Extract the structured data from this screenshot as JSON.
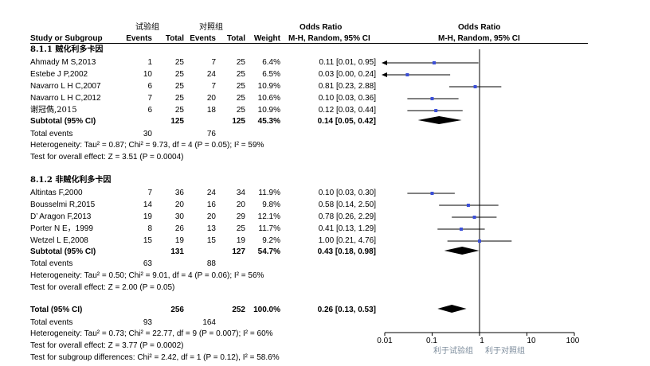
{
  "header": {
    "group_exp": "试验组",
    "group_ctrl": "对照组",
    "odds_ratio_left": "Odds Ratio",
    "odds_ratio_right": "Odds Ratio",
    "col_study": "Study or Subgroup",
    "col_events1": "Events",
    "col_total1": "Total",
    "col_events2": "Events",
    "col_total2": "Total",
    "col_weight": "Weight",
    "col_method_left": "M-H, Random, 95% CI",
    "col_method_right": "M-H, Random, 95% CI"
  },
  "subgroup1": {
    "title": "8.1.1 贼化利多卡因",
    "subtotal": {
      "label": "Subtotal (95% CI)",
      "total1": "125",
      "total2": "125",
      "weight": "45.3%",
      "ci": "0.14 [0.05, 0.42]"
    },
    "total_events": {
      "label": "Total events",
      "e1": "30",
      "e2": "76"
    },
    "heterogeneity": "Heterogeneity: Tau² = 0.87; Chi² = 9.73, df = 4 (P = 0.05); I² = 59%",
    "overall": "Test for overall effect: Z = 3.51 (P = 0.0004)"
  },
  "subgroup2": {
    "title": "8.1.2 非贼化利多卡因",
    "subtotal": {
      "label": "Subtotal (95% CI)",
      "total1": "131",
      "total2": "127",
      "weight": "54.7%",
      "ci": "0.43 [0.18, 0.98]"
    },
    "total_events": {
      "label": "Total events",
      "e1": "63",
      "e2": "88"
    },
    "heterogeneity": "Heterogeneity: Tau² = 0.50; Chi² = 9.01, df = 4 (P = 0.06); I² = 56%",
    "overall": "Test for overall effect: Z = 2.00 (P = 0.05)"
  },
  "total": {
    "label": "Total (95% CI)",
    "total1": "256",
    "total2": "252",
    "weight": "100.0%",
    "ci": "0.26 [0.13, 0.53]",
    "events_label": "Total events",
    "e1": "93",
    "e2": "164",
    "heterogeneity": "Heterogeneity: Tau² = 0.73; Chi² = 22.77, df = 9 (P = 0.007); I² = 60%",
    "overall": "Test for overall effect: Z = 3.77 (P = 0.0002)",
    "subgroup_diff": "Test for subgroup differences: Chi² = 2.42, df = 1 (P = 0.12), I² = 58.6%"
  },
  "axis": {
    "favours_left": "利于试验组",
    "favours_right": "利于对照组"
  },
  "colors": {
    "marker": "#3b4fd8",
    "line": "#000000",
    "diamond": "#000000"
  },
  "chart_data": {
    "type": "forest",
    "x_scale": "log",
    "xlim": [
      0.01,
      100
    ],
    "ticks": [
      0.01,
      0.1,
      1,
      10,
      100
    ],
    "tick_labels": [
      "0.01",
      "0.1",
      "1",
      "10",
      "100"
    ],
    "xlabel_left": "利于试验组",
    "xlabel_right": "利于对照组",
    "studies": [
      {
        "name": "Ahmady M S,2013",
        "e1": 1,
        "n1": 25,
        "e2": 7,
        "n2": 25,
        "weight": "6.4%",
        "or": 0.11,
        "lo": 0.01,
        "hi": 0.95,
        "ci": "0.11 [0.01, 0.95]",
        "group": 1
      },
      {
        "name": "Estebe J P,2002",
        "e1": 10,
        "n1": 25,
        "e2": 24,
        "n2": 25,
        "weight": "6.5%",
        "or": 0.03,
        "lo": 0.0,
        "hi": 0.24,
        "ci": "0.03 [0.00, 0.24]",
        "group": 1
      },
      {
        "name": "Navarro L H C,2007",
        "e1": 6,
        "n1": 25,
        "e2": 7,
        "n2": 25,
        "weight": "10.9%",
        "or": 0.81,
        "lo": 0.23,
        "hi": 2.88,
        "ci": "0.81 [0.23, 2.88]",
        "group": 1
      },
      {
        "name": "Navarro L H C,2012",
        "e1": 7,
        "n1": 25,
        "e2": 20,
        "n2": 25,
        "weight": "10.6%",
        "or": 0.1,
        "lo": 0.03,
        "hi": 0.36,
        "ci": "0.10 [0.03, 0.36]",
        "group": 1
      },
      {
        "name": "谢冠儁,2015",
        "e1": 6,
        "n1": 25,
        "e2": 18,
        "n2": 25,
        "weight": "10.9%",
        "or": 0.12,
        "lo": 0.03,
        "hi": 0.44,
        "ci": "0.12 [0.03, 0.44]",
        "group": 1
      },
      {
        "name": "Altintas F,2000",
        "e1": 7,
        "n1": 36,
        "e2": 24,
        "n2": 34,
        "weight": "11.9%",
        "or": 0.1,
        "lo": 0.03,
        "hi": 0.3,
        "ci": "0.10 [0.03, 0.30]",
        "group": 2
      },
      {
        "name": "Bousselmi R,2015",
        "e1": 14,
        "n1": 20,
        "e2": 16,
        "n2": 20,
        "weight": "9.8%",
        "or": 0.58,
        "lo": 0.14,
        "hi": 2.5,
        "ci": "0.58 [0.14, 2.50]",
        "group": 2
      },
      {
        "name": "D’ Aragon F,2013",
        "e1": 19,
        "n1": 30,
        "e2": 20,
        "n2": 29,
        "weight": "12.1%",
        "or": 0.78,
        "lo": 0.26,
        "hi": 2.29,
        "ci": "0.78 [0.26, 2.29]",
        "group": 2
      },
      {
        "name": "Porter N E，1999",
        "e1": 8,
        "n1": 26,
        "e2": 13,
        "n2": 25,
        "weight": "11.7%",
        "or": 0.41,
        "lo": 0.13,
        "hi": 1.29,
        "ci": "0.41 [0.13, 1.29]",
        "group": 2
      },
      {
        "name": "Wetzel L E,2008",
        "e1": 15,
        "n1": 19,
        "e2": 15,
        "n2": 19,
        "weight": "9.2%",
        "or": 1.0,
        "lo": 0.21,
        "hi": 4.76,
        "ci": "1.00 [0.21, 4.76]",
        "group": 2
      }
    ],
    "diamonds": [
      {
        "name": "Subtotal 8.1.1",
        "or": 0.14,
        "lo": 0.05,
        "hi": 0.42
      },
      {
        "name": "Subtotal 8.1.2",
        "or": 0.43,
        "lo": 0.18,
        "hi": 0.98
      },
      {
        "name": "Total",
        "or": 0.26,
        "lo": 0.13,
        "hi": 0.53
      }
    ]
  }
}
